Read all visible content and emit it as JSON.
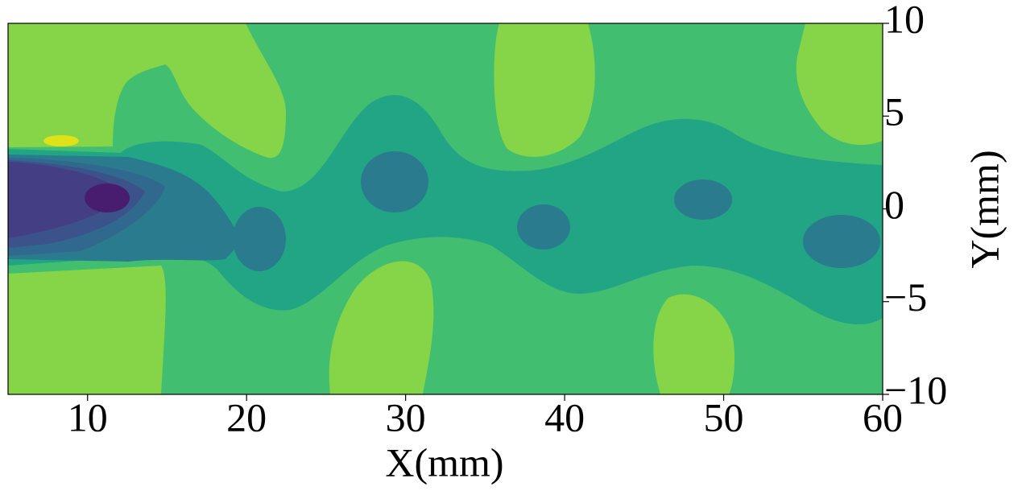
{
  "chart_data": {
    "type": "contour",
    "xlabel": "X(mm)",
    "ylabel": "Y(mm)",
    "xlim": [
      5,
      60
    ],
    "ylim": [
      -10,
      10
    ],
    "xticks": [
      10,
      20,
      30,
      40,
      50,
      60
    ],
    "yticks": [
      {
        "value": -10,
        "label": "−10"
      },
      {
        "value": -5,
        "label": "−5"
      },
      0,
      5,
      10
    ]
  }
}
